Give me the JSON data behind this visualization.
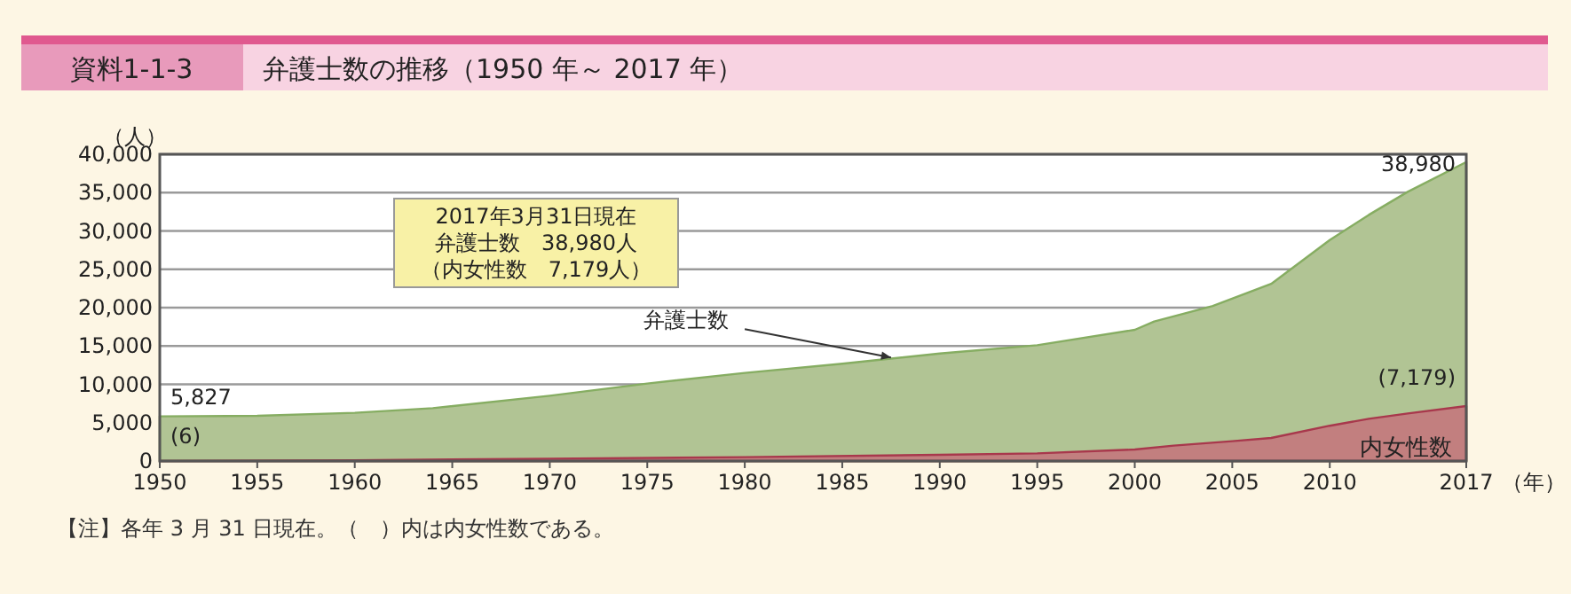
{
  "chart_data": {
    "type": "area",
    "title": "弁護士数の推移（1950 年～ 2017 年）",
    "xlabel": "（年）",
    "ylabel": "（人）",
    "annotations": [
      "資料1-1-3",
      "2017年3月31日現在",
      "弁護士数　38,980人",
      "（内女性数　7,179人）",
      "【注】各年 3 月 31 日現在。（　）内は内女性数である。"
    ],
    "xlim": [
      1950,
      2017
    ],
    "ylim": [
      0,
      40000
    ],
    "xticks": [
      1950,
      1955,
      1960,
      1965,
      1970,
      1975,
      1980,
      1985,
      1990,
      1995,
      2000,
      2005,
      2010,
      2017
    ],
    "yticks": [
      0,
      {
        "value": 5000,
        "label": "5,000"
      },
      {
        "value": 10000,
        "label": "10,000"
      },
      {
        "value": 15000,
        "label": "15,000"
      },
      {
        "value": 20000,
        "label": "20,000"
      },
      {
        "value": 25000,
        "label": "25,000"
      },
      {
        "value": 30000,
        "label": "30,000"
      },
      {
        "value": 35000,
        "label": "35,000"
      },
      {
        "value": 40000,
        "label": "40,000"
      }
    ],
    "grid": "y",
    "series": [
      {
        "name": "弁護士数",
        "color": "#b1c494",
        "x": [
          1950,
          1955,
          1960,
          1964,
          1970,
          1975,
          1980,
          1985,
          1990,
          1995,
          2000,
          2001,
          2004,
          2007,
          2010,
          2012,
          2014,
          2017
        ],
        "values": [
          5827,
          5900,
          6300,
          6900,
          8500,
          10100,
          11500,
          12700,
          14000,
          15100,
          17100,
          18200,
          20200,
          23100,
          28800,
          32100,
          35100,
          38980
        ],
        "value_labels": [
          "5,827",
          null,
          null,
          null,
          null,
          null,
          null,
          null,
          null,
          null,
          null,
          null,
          null,
          null,
          null,
          null,
          null,
          "38,980"
        ]
      },
      {
        "name": "内女性数",
        "color": "#c27f7f",
        "x": [
          1950,
          1960,
          1970,
          1980,
          1990,
          1995,
          2000,
          2002,
          2005,
          2007,
          2010,
          2012,
          2014,
          2017
        ],
        "values": [
          6,
          100,
          300,
          500,
          800,
          1000,
          1500,
          2000,
          2600,
          3000,
          4600,
          5500,
          6200,
          7179
        ],
        "value_labels": [
          "(6)",
          null,
          null,
          null,
          null,
          null,
          null,
          null,
          null,
          null,
          null,
          null,
          null,
          "(7,179)"
        ]
      }
    ]
  }
}
